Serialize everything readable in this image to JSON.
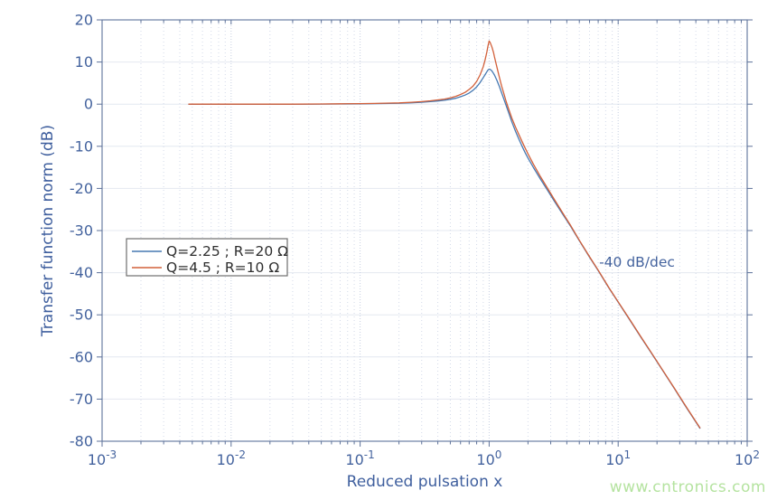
{
  "figure": {
    "background": "#ffffff",
    "watermark": {
      "text": "www.cntronics.com",
      "color": "#b5e3a0"
    }
  },
  "style": {
    "frame_color": "#5d729a",
    "tick_color": "#5d729a",
    "tick_label_color": "#44639e",
    "axis_label_color": "#3f5f9e",
    "grid_h_color": "#e4e8f0",
    "grid_v_minor_color": "#d3dae9",
    "grid_v_major_color": "#c6cfe2",
    "legend_border_color": "#6e6e6e",
    "series_blue": "#4679b2",
    "series_orange": "#d2603a"
  },
  "chart_data": {
    "type": "line",
    "x_scale": "log",
    "title": "",
    "xlabel": "Reduced pulsation x",
    "ylabel": "Transfer function norm (dB)",
    "xlim_exponents": [
      -3,
      2
    ],
    "ylim": [
      -80,
      20
    ],
    "grid": true,
    "y_ticks": [
      20,
      10,
      0,
      -10,
      -20,
      -30,
      -40,
      -50,
      -60,
      -70,
      -80
    ],
    "x_ticks": [
      {
        "base": "10",
        "exp": "-3"
      },
      {
        "base": "10",
        "exp": "-2"
      },
      {
        "base": "10",
        "exp": "-1"
      },
      {
        "base": "10",
        "exp": "0"
      },
      {
        "base": "10",
        "exp": "1"
      },
      {
        "base": "10",
        "exp": "2"
      }
    ],
    "legend": {
      "position": "left-middle",
      "entries": [
        {
          "label": "Q=2.25 ; R=20 Ω",
          "color": "#4679b2"
        },
        {
          "label": "Q=4.5 ; R=10 Ω",
          "color": "#d2603a"
        }
      ]
    },
    "annotations": [
      {
        "text": "-40 dB/dec",
        "x": 14,
        "y": -37.5
      }
    ],
    "series": [
      {
        "name": "Q=2.25 ; R=20 Ω",
        "color": "#4679b2",
        "points": [
          [
            0.0047,
            0
          ],
          [
            0.006,
            0
          ],
          [
            0.008,
            0
          ],
          [
            0.01,
            0
          ],
          [
            0.015,
            0
          ],
          [
            0.02,
            0
          ],
          [
            0.03,
            0
          ],
          [
            0.05,
            0.03
          ],
          [
            0.07,
            0.05
          ],
          [
            0.1,
            0.08
          ],
          [
            0.13,
            0.12
          ],
          [
            0.17,
            0.18
          ],
          [
            0.2,
            0.22
          ],
          [
            0.25,
            0.33
          ],
          [
            0.3,
            0.45
          ],
          [
            0.35,
            0.6
          ],
          [
            0.4,
            0.75
          ],
          [
            0.45,
            0.95
          ],
          [
            0.5,
            1.15
          ],
          [
            0.55,
            1.4
          ],
          [
            0.6,
            1.75
          ],
          [
            0.65,
            2.15
          ],
          [
            0.7,
            2.65
          ],
          [
            0.75,
            3.3
          ],
          [
            0.8,
            4.1
          ],
          [
            0.85,
            5.1
          ],
          [
            0.9,
            6.3
          ],
          [
            0.93,
            7.0
          ],
          [
            0.96,
            7.7
          ],
          [
            0.98,
            8.1
          ],
          [
            1.0,
            8.3
          ],
          [
            1.02,
            8.25
          ],
          [
            1.05,
            7.9
          ],
          [
            1.08,
            7.3
          ],
          [
            1.1,
            6.9
          ],
          [
            1.15,
            5.6
          ],
          [
            1.2,
            4.2
          ],
          [
            1.25,
            2.7
          ],
          [
            1.3,
            1.2
          ],
          [
            1.35,
            -0.2
          ],
          [
            1.4,
            -1.6
          ],
          [
            1.5,
            -4.2
          ],
          [
            1.6,
            -6.4
          ],
          [
            1.7,
            -8.3
          ],
          [
            1.8,
            -10.0
          ],
          [
            1.9,
            -11.5
          ],
          [
            2.0,
            -12.8
          ],
          [
            2.2,
            -15.0
          ],
          [
            2.5,
            -17.8
          ],
          [
            2.8,
            -20.2
          ],
          [
            3.2,
            -23.0
          ],
          [
            3.7,
            -26.0
          ],
          [
            4.3,
            -29.1
          ],
          [
            5.0,
            -32.4
          ],
          [
            6.0,
            -36.3
          ],
          [
            7.0,
            -39.5
          ],
          [
            8.5,
            -43.7
          ],
          [
            10,
            -47.0
          ],
          [
            12,
            -50.7
          ],
          [
            15,
            -55.3
          ],
          [
            18,
            -59.0
          ],
          [
            22,
            -63.1
          ],
          [
            27,
            -67.3
          ],
          [
            33,
            -71.5
          ],
          [
            38,
            -74.4
          ],
          [
            43,
            -76.9
          ]
        ]
      },
      {
        "name": "Q=4.5 ; R=10 Ω",
        "color": "#d2603a",
        "points": [
          [
            0.0047,
            0
          ],
          [
            0.006,
            0
          ],
          [
            0.008,
            0
          ],
          [
            0.01,
            0
          ],
          [
            0.015,
            0
          ],
          [
            0.02,
            0
          ],
          [
            0.03,
            0
          ],
          [
            0.05,
            0.05
          ],
          [
            0.07,
            0.08
          ],
          [
            0.1,
            0.12
          ],
          [
            0.13,
            0.18
          ],
          [
            0.17,
            0.25
          ],
          [
            0.2,
            0.3
          ],
          [
            0.25,
            0.45
          ],
          [
            0.3,
            0.6
          ],
          [
            0.35,
            0.8
          ],
          [
            0.4,
            1.0
          ],
          [
            0.45,
            1.2
          ],
          [
            0.5,
            1.5
          ],
          [
            0.55,
            1.85
          ],
          [
            0.6,
            2.3
          ],
          [
            0.65,
            2.8
          ],
          [
            0.7,
            3.5
          ],
          [
            0.75,
            4.3
          ],
          [
            0.8,
            5.4
          ],
          [
            0.85,
            6.9
          ],
          [
            0.9,
            8.9
          ],
          [
            0.93,
            10.5
          ],
          [
            0.96,
            12.4
          ],
          [
            0.98,
            13.8
          ],
          [
            1.0,
            15.0
          ],
          [
            1.02,
            14.6
          ],
          [
            1.05,
            13.6
          ],
          [
            1.08,
            12.3
          ],
          [
            1.1,
            11.2
          ],
          [
            1.15,
            8.7
          ],
          [
            1.2,
            6.4
          ],
          [
            1.25,
            4.3
          ],
          [
            1.3,
            2.5
          ],
          [
            1.35,
            0.8
          ],
          [
            1.4,
            -0.7
          ],
          [
            1.5,
            -3.3
          ],
          [
            1.6,
            -5.4
          ],
          [
            1.7,
            -7.2
          ],
          [
            1.8,
            -8.9
          ],
          [
            1.9,
            -10.4
          ],
          [
            2.0,
            -11.8
          ],
          [
            2.2,
            -14.2
          ],
          [
            2.5,
            -17.2
          ],
          [
            2.8,
            -19.7
          ],
          [
            3.2,
            -22.6
          ],
          [
            3.7,
            -25.7
          ],
          [
            4.3,
            -28.9
          ],
          [
            5.0,
            -32.3
          ],
          [
            6.0,
            -36.2
          ],
          [
            7.0,
            -39.4
          ],
          [
            8.5,
            -43.6
          ],
          [
            10,
            -46.9
          ],
          [
            12,
            -50.6
          ],
          [
            15,
            -55.2
          ],
          [
            18,
            -58.9
          ],
          [
            22,
            -63.0
          ],
          [
            27,
            -67.2
          ],
          [
            33,
            -71.4
          ],
          [
            38,
            -74.3
          ],
          [
            43,
            -76.8
          ]
        ]
      }
    ]
  }
}
